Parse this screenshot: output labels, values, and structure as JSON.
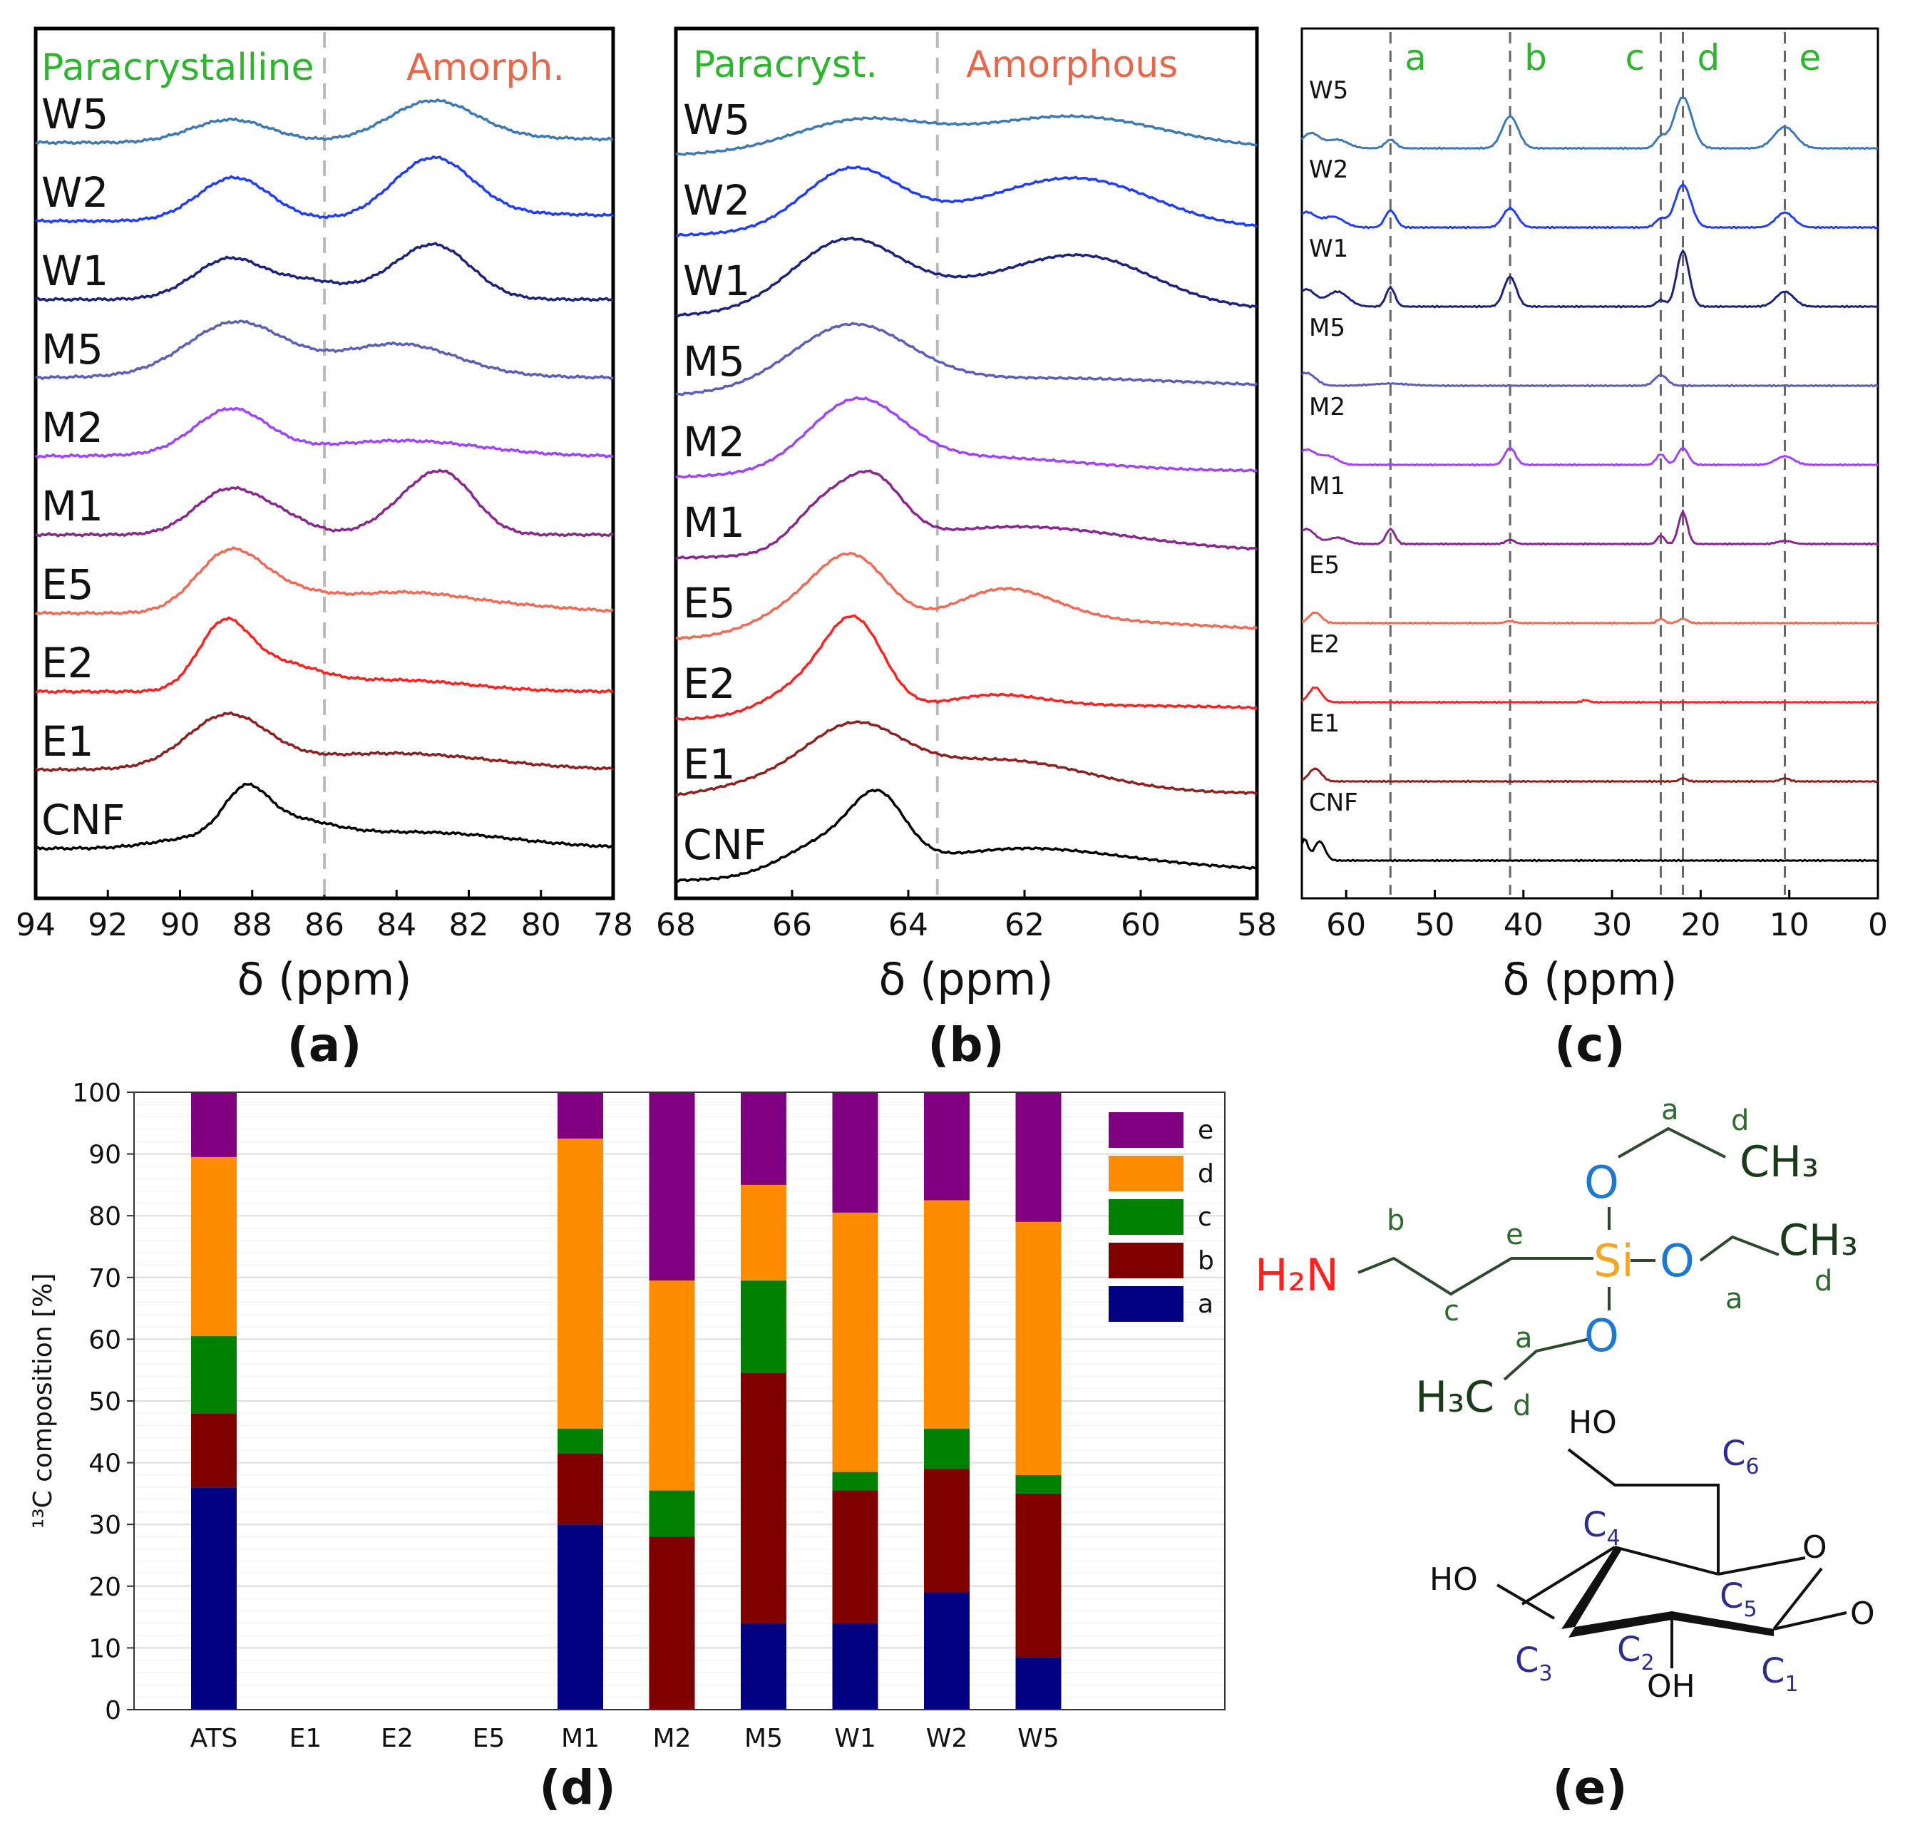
{
  "chart_data": [
    {
      "id": "a",
      "type": "line",
      "panel_label": "(a)",
      "xlabel": "δ (ppm)",
      "xlim": [
        94,
        78
      ],
      "xticks": [
        "94",
        "92",
        "90",
        "88",
        "86",
        "84",
        "82",
        "80",
        "78"
      ],
      "divider_ppm": 86,
      "region_labels": [
        {
          "text": "Paracrystalline",
          "color": "#2db52d"
        },
        {
          "text": "Amorph.",
          "color": "#e8664a"
        }
      ],
      "series": [
        {
          "name": "W5",
          "color": "#3d7ab5"
        },
        {
          "name": "W2",
          "color": "#1f3cff"
        },
        {
          "name": "W1",
          "color": "#1c237c"
        },
        {
          "name": "M5",
          "color": "#5c5fb8"
        },
        {
          "name": "M2",
          "color": "#a043ff"
        },
        {
          "name": "M1",
          "color": "#8a2690"
        },
        {
          "name": "E5",
          "color": "#f06a55"
        },
        {
          "name": "E2",
          "color": "#ff2020"
        },
        {
          "name": "E1",
          "color": "#8f2020"
        },
        {
          "name": "CNF",
          "color": "#000000"
        }
      ]
    },
    {
      "id": "b",
      "type": "line",
      "panel_label": "(b)",
      "xlabel": "δ (ppm)",
      "xlim": [
        68,
        58
      ],
      "xticks": [
        "68",
        "66",
        "64",
        "62",
        "60",
        "58"
      ],
      "divider_ppm": 63.5,
      "region_labels": [
        {
          "text": "Paracryst.",
          "color": "#2db52d"
        },
        {
          "text": "Amorphous",
          "color": "#e8664a"
        }
      ],
      "series": [
        {
          "name": "W5",
          "color": "#3d7ab5"
        },
        {
          "name": "W2",
          "color": "#1f3cff"
        },
        {
          "name": "W1",
          "color": "#1c237c"
        },
        {
          "name": "M5",
          "color": "#5c5fb8"
        },
        {
          "name": "M2",
          "color": "#a043ff"
        },
        {
          "name": "M1",
          "color": "#8a2690"
        },
        {
          "name": "E5",
          "color": "#f06a55"
        },
        {
          "name": "E2",
          "color": "#ff2020"
        },
        {
          "name": "E1",
          "color": "#8f2020"
        },
        {
          "name": "CNF",
          "color": "#000000"
        }
      ]
    },
    {
      "id": "c",
      "type": "line",
      "panel_label": "(c)",
      "xlabel": "δ (ppm)",
      "xlim": [
        65,
        0
      ],
      "xticks": [
        "60",
        "50",
        "40",
        "30",
        "20",
        "10",
        "0"
      ],
      "peak_lines": [
        {
          "label": "a",
          "ppm": 55
        },
        {
          "label": "b",
          "ppm": 41.5
        },
        {
          "label": "c",
          "ppm": 24.5
        },
        {
          "label": "d",
          "ppm": 22
        },
        {
          "label": "e",
          "ppm": 10.5
        }
      ],
      "series": [
        {
          "name": "W5",
          "color": "#3d7ab5"
        },
        {
          "name": "W2",
          "color": "#1f3cff"
        },
        {
          "name": "W1",
          "color": "#1c237c"
        },
        {
          "name": "M5",
          "color": "#5c5fb8"
        },
        {
          "name": "M2",
          "color": "#a043ff"
        },
        {
          "name": "M1",
          "color": "#8a2690"
        },
        {
          "name": "E5",
          "color": "#f06a55"
        },
        {
          "name": "E2",
          "color": "#ff2020"
        },
        {
          "name": "E1",
          "color": "#8f2020"
        },
        {
          "name": "CNF",
          "color": "#000000"
        }
      ]
    },
    {
      "id": "d",
      "type": "bar",
      "stacked": true,
      "panel_label": "(d)",
      "ylabel": "¹³C composition [%]",
      "ylim": [
        0,
        100
      ],
      "yticks": [
        "0",
        "10",
        "20",
        "30",
        "40",
        "50",
        "60",
        "70",
        "80",
        "90",
        "100"
      ],
      "categories": [
        "ATS",
        "E1",
        "E2",
        "E5",
        "M1",
        "M2",
        "M5",
        "W1",
        "W2",
        "W5"
      ],
      "series": [
        {
          "name": "a",
          "color": "#000080",
          "values": [
            36,
            0,
            0,
            0,
            30,
            0,
            14,
            14,
            19,
            8.5
          ]
        },
        {
          "name": "b",
          "color": "#800000",
          "values": [
            12,
            0,
            0,
            0,
            11.5,
            28,
            40.5,
            21.5,
            20,
            26.5
          ]
        },
        {
          "name": "c",
          "color": "#008000",
          "values": [
            12.5,
            0,
            0,
            0,
            4,
            7.5,
            15,
            3,
            6.5,
            3
          ]
        },
        {
          "name": "d",
          "color": "#ff8c00",
          "values": [
            29,
            0,
            0,
            0,
            47,
            34,
            15.5,
            42,
            37,
            41
          ]
        },
        {
          "name": "e",
          "color": "#800080",
          "values": [
            10.5,
            0,
            0,
            0,
            7.5,
            30.5,
            15,
            19.5,
            17.5,
            21
          ]
        }
      ],
      "legend": [
        "e",
        "d",
        "c",
        "b",
        "a"
      ]
    }
  ],
  "structure": {
    "panel_label": "(e)",
    "aptes": {
      "amine": "H₂N",
      "silicon": "Si",
      "oxygen": "O",
      "methyl_top": "CH₃",
      "methyl_right": "CH₃",
      "methyl_bottom": "H₃C",
      "labels": [
        "a",
        "b",
        "c",
        "d",
        "e"
      ]
    },
    "glucose": {
      "hydroxyls": [
        "HO",
        "HO",
        "OH"
      ],
      "ring_oxygen": "O",
      "anomeric_oxygen": "O",
      "carbons": [
        "C",
        "C",
        "C",
        "C",
        "C",
        "C"
      ],
      "subscripts": [
        "1",
        "2",
        "3",
        "4",
        "5",
        "6"
      ]
    }
  }
}
